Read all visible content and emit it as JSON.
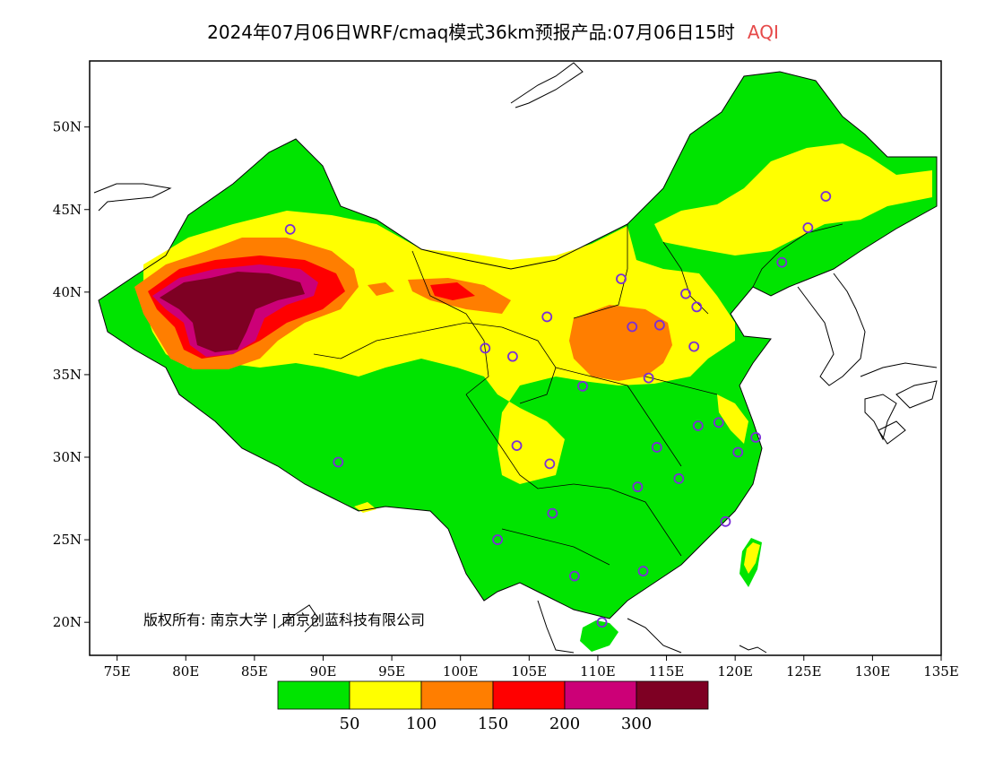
{
  "title": {
    "main": "2024年07月06日WRF/cmaq模式36km预报产品:07月06日15时",
    "variable": "AQI",
    "variable_color": "#e64a4a"
  },
  "axes": {
    "lon_ticks": [
      "75E",
      "80E",
      "85E",
      "90E",
      "95E",
      "100E",
      "105E",
      "110E",
      "115E",
      "120E",
      "125E",
      "130E",
      "135E"
    ],
    "lat_ticks": [
      "20N",
      "25N",
      "30N",
      "35N",
      "40N",
      "45N",
      "50N"
    ]
  },
  "copyright": "版权所有: 南京大学 | 南京创蓝科技有限公司",
  "legend": {
    "colors": [
      "#00e400",
      "#ffff00",
      "#ff7e00",
      "#ff0000",
      "#cc0077",
      "#7e0023"
    ],
    "labels": [
      "50",
      "100",
      "150",
      "200",
      "300"
    ]
  },
  "chart_data": {
    "type": "heatmap",
    "title": "2024年07月06日WRF/cmaq模式36km预报产品:07月06日15时 AQI",
    "xlim": [
      73,
      135
    ],
    "ylim": [
      18,
      54
    ],
    "legend_placement": "bottom-center",
    "aqi_breaks": [
      50,
      100,
      150,
      200,
      300
    ],
    "stations": [
      {
        "lon": 87.6,
        "lat": 43.8
      },
      {
        "lon": 91.1,
        "lat": 29.7
      },
      {
        "lon": 101.8,
        "lat": 36.6
      },
      {
        "lon": 103.8,
        "lat": 36.1
      },
      {
        "lon": 106.3,
        "lat": 38.5
      },
      {
        "lon": 111.7,
        "lat": 40.8
      },
      {
        "lon": 112.5,
        "lat": 37.9
      },
      {
        "lon": 114.5,
        "lat": 38.0
      },
      {
        "lon": 116.4,
        "lat": 39.9
      },
      {
        "lon": 117.2,
        "lat": 39.1
      },
      {
        "lon": 117.0,
        "lat": 36.7
      },
      {
        "lon": 113.7,
        "lat": 34.8
      },
      {
        "lon": 108.9,
        "lat": 34.3
      },
      {
        "lon": 104.1,
        "lat": 30.7
      },
      {
        "lon": 106.5,
        "lat": 29.6
      },
      {
        "lon": 106.7,
        "lat": 26.6
      },
      {
        "lon": 102.7,
        "lat": 25.0
      },
      {
        "lon": 108.3,
        "lat": 22.8
      },
      {
        "lon": 113.3,
        "lat": 23.1
      },
      {
        "lon": 110.3,
        "lat": 20.0
      },
      {
        "lon": 114.3,
        "lat": 30.6
      },
      {
        "lon": 112.9,
        "lat": 28.2
      },
      {
        "lon": 115.9,
        "lat": 28.7
      },
      {
        "lon": 117.3,
        "lat": 31.9
      },
      {
        "lon": 118.8,
        "lat": 32.1
      },
      {
        "lon": 120.2,
        "lat": 30.3
      },
      {
        "lon": 121.5,
        "lat": 31.2
      },
      {
        "lon": 119.3,
        "lat": 26.1
      },
      {
        "lon": 123.4,
        "lat": 41.8
      },
      {
        "lon": 125.3,
        "lat": 43.9
      },
      {
        "lon": 126.6,
        "lat": 45.8
      }
    ]
  }
}
